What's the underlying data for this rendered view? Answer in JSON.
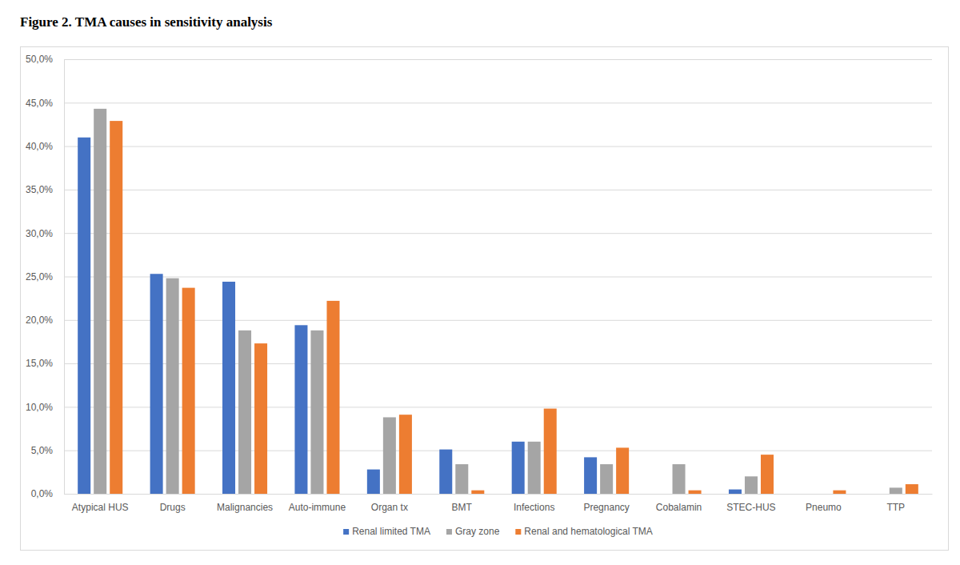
{
  "chart_data": {
    "type": "bar",
    "title": "Figure 2. TMA causes in sensitivity analysis",
    "categories": [
      "Atypical HUS",
      "Drugs",
      "Malignancies",
      "Auto-immune",
      "Organ tx",
      "BMT",
      "Infections",
      "Pregnancy",
      "Cobalamin",
      "STEC-HUS",
      "Pneumo",
      "TTP"
    ],
    "series": [
      {
        "name": "Renal limited TMA",
        "color": "#4472c4",
        "values": [
          41.0,
          25.3,
          24.4,
          19.4,
          2.8,
          5.1,
          6.0,
          4.2,
          0,
          0.5,
          0,
          0
        ]
      },
      {
        "name": "Gray zone",
        "color": "#a5a5a5",
        "values": [
          44.3,
          24.8,
          18.8,
          18.8,
          8.8,
          3.4,
          6.0,
          3.4,
          3.4,
          2.0,
          0,
          0.7
        ]
      },
      {
        "name": "Renal and hematological TMA",
        "color": "#ed7d31",
        "values": [
          42.9,
          23.7,
          17.3,
          22.2,
          9.1,
          0.4,
          9.8,
          5.3,
          0.4,
          4.5,
          0.4,
          1.1
        ]
      }
    ],
    "ylim": [
      0,
      50
    ],
    "yticks": [
      {
        "value": 0,
        "label": "0,0%"
      },
      {
        "value": 5,
        "label": "5,0%"
      },
      {
        "value": 10,
        "label": "10,0%"
      },
      {
        "value": 15,
        "label": "15,0%"
      },
      {
        "value": 20,
        "label": "20,0%"
      },
      {
        "value": 25,
        "label": "25,0%"
      },
      {
        "value": 30,
        "label": "30,0%"
      },
      {
        "value": 35,
        "label": "35,0%"
      },
      {
        "value": 40,
        "label": "40,0%"
      },
      {
        "value": 45,
        "label": "45,0%"
      },
      {
        "value": 50,
        "label": "50,0%"
      }
    ],
    "grid": true,
    "legend": "bottom"
  }
}
